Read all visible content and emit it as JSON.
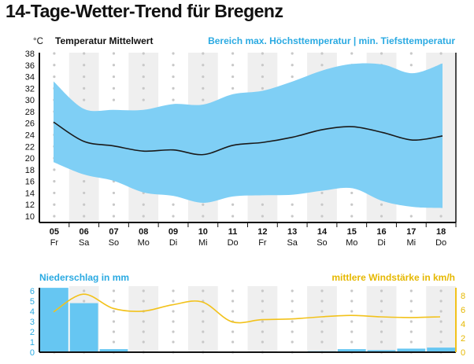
{
  "page": {
    "title": "14-Tage-Wetter-Trend für Bregenz"
  },
  "temperature_chart": {
    "unit": "°C",
    "mean_label": "Temperatur Mittelwert",
    "range_label": "Bereich max. Höchsttemperatur | min. Tiefsttemperatur",
    "y_ticks": [
      "38",
      "36",
      "34",
      "32",
      "30",
      "28",
      "26",
      "24",
      "22",
      "20",
      "18",
      "16",
      "14",
      "12",
      "10"
    ],
    "days": [
      {
        "date": "05",
        "weekday": "Fr"
      },
      {
        "date": "06",
        "weekday": "Sa"
      },
      {
        "date": "07",
        "weekday": "So"
      },
      {
        "date": "08",
        "weekday": "Mo"
      },
      {
        "date": "09",
        "weekday": "Di"
      },
      {
        "date": "10",
        "weekday": "Mi"
      },
      {
        "date": "11",
        "weekday": "Do"
      },
      {
        "date": "12",
        "weekday": "Fr"
      },
      {
        "date": "13",
        "weekday": "Sa"
      },
      {
        "date": "14",
        "weekday": "So"
      },
      {
        "date": "15",
        "weekday": "Mo"
      },
      {
        "date": "16",
        "weekday": "Di"
      },
      {
        "date": "17",
        "weekday": "Mi"
      },
      {
        "date": "18",
        "weekday": "Do"
      }
    ]
  },
  "precip_chart": {
    "precip_label": "Niederschlag in mm",
    "wind_label": "mittlere Windstärke in km/h",
    "left_ticks": [
      "6",
      "5",
      "4",
      "3",
      "2",
      "1",
      "0"
    ],
    "right_ticks": [
      "8",
      "6",
      "4",
      "2",
      "0"
    ]
  },
  "colors": {
    "range_fill": "#7fcff5",
    "mean_line": "#1a1a1a",
    "precip_bar": "#66c6f2",
    "precip_label": "#2aaae2",
    "wind_line": "#f2c21b",
    "wind_label": "#e6b800",
    "stripe": "#efefef",
    "dot": "#c8c8c8"
  },
  "chart_data": [
    {
      "type": "area",
      "ylabel": "°C",
      "ylim": [
        10,
        38
      ],
      "categories": [
        "05 Fr",
        "06 Sa",
        "07 So",
        "08 Mo",
        "09 Di",
        "10 Mi",
        "11 Do",
        "12 Fr",
        "13 Sa",
        "14 So",
        "15 Mo",
        "16 Di",
        "17 Mi",
        "18 Do"
      ],
      "series": [
        {
          "name": "Temperatur Mittelwert",
          "values": [
            26.2,
            22.9,
            22.1,
            21.2,
            21.4,
            20.6,
            22.2,
            22.7,
            23.6,
            24.9,
            25.4,
            24.4,
            23.1,
            23.8
          ]
        },
        {
          "name": "max. Höchsttemperatur",
          "values": [
            33.2,
            28.5,
            28.3,
            28.3,
            29.3,
            29.2,
            31.0,
            31.6,
            33.2,
            35.1,
            36.2,
            36.1,
            34.6,
            36.3
          ]
        },
        {
          "name": "min. Tiefsttemperatur",
          "values": [
            19.3,
            17.2,
            16.1,
            14.1,
            13.5,
            12.3,
            13.4,
            13.6,
            13.7,
            14.4,
            14.8,
            12.6,
            11.6,
            11.4
          ]
        }
      ],
      "grid": true
    },
    {
      "type": "bar",
      "ylim": [
        0,
        6
      ],
      "categories": [
        "05 Fr",
        "06 Sa",
        "07 So",
        "08 Mo",
        "09 Di",
        "10 Mi",
        "11 Do",
        "12 Fr",
        "13 Sa",
        "14 So",
        "15 Mo",
        "16 Di",
        "17 Mi",
        "18 Do"
      ],
      "series": [
        {
          "name": "Niederschlag in mm",
          "values": [
            6.3,
            4.8,
            0.3,
            0.0,
            0.0,
            0.0,
            0.0,
            0.0,
            0.0,
            0.1,
            0.3,
            0.2,
            0.35,
            0.45
          ]
        }
      ]
    },
    {
      "type": "line",
      "ylim": [
        0,
        8
      ],
      "categories": [
        "05 Fr",
        "06 Sa",
        "07 So",
        "08 Mo",
        "09 Di",
        "10 Mi",
        "11 Do",
        "12 Fr",
        "13 Sa",
        "14 So",
        "15 Mo",
        "16 Di",
        "17 Mi",
        "18 Do"
      ],
      "series": [
        {
          "name": "mittlere Windstärke in km/h",
          "values": [
            5.7,
            8.2,
            6.2,
            5.8,
            6.7,
            7.1,
            4.3,
            4.6,
            4.7,
            5.0,
            5.2,
            5.0,
            4.9,
            5.0
          ]
        }
      ]
    }
  ]
}
